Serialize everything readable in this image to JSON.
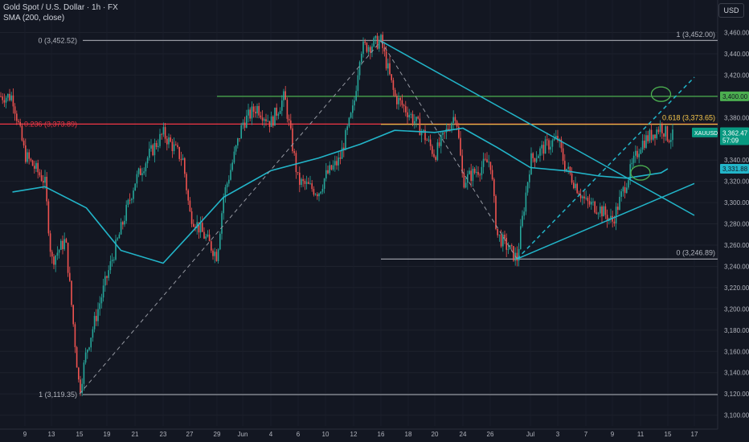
{
  "header": {
    "symbol_line": "Gold Spot / U.S. Dollar · 1h · FX",
    "indicator_line": "SMA (200, close)",
    "currency_button": "USD"
  },
  "colors": {
    "background": "#131722",
    "price_up": "#26a69a",
    "price_down": "#ef5350",
    "sma": "#22b5c9",
    "trendline": "#22b5c9",
    "fib_grey": "#9598a1",
    "fib_red": "#f23645",
    "fib_yellow": "#f7c74a",
    "level_green": "#4caf50",
    "badge_teal": "#089981"
  },
  "chart_data": {
    "type": "candlestick",
    "title": "Gold Spot / U.S. Dollar · 1h · FX",
    "ylabel": "USD",
    "ylim": [
      3095,
      3470
    ],
    "y_ticks": [
      3100,
      3120,
      3140,
      3160,
      3180,
      3200,
      3220,
      3240,
      3260,
      3280,
      3300,
      3320,
      3340,
      3360,
      3380,
      3400,
      3420,
      3440,
      3460
    ],
    "y_tick_labels": [
      "3,100.00",
      "3,120.00",
      "3,140.00",
      "3,160.00",
      "3,180.00",
      "3,200.00",
      "3,220.00",
      "3,240.00",
      "3,260.00",
      "3,280.00",
      "3,300.00",
      "3,320.00",
      "3,340.00",
      "3,360.00",
      "3,380.00",
      "3,400.00",
      "3,420.00",
      "3,440.00",
      "3,460.00"
    ],
    "x_tick_labels": [
      "9",
      "13",
      "15",
      "19",
      "21",
      "23",
      "27",
      "29",
      "Jun",
      "4",
      "6",
      "10",
      "12",
      "16",
      "18",
      "20",
      "24",
      "26",
      "Jul",
      "3",
      "7",
      "9",
      "11",
      "15",
      "17"
    ],
    "price_series": {
      "name": "XAUUSD",
      "last_price": "3,362.47",
      "countdown": "57:09",
      "path_keypoints": [
        {
          "date": "May 8",
          "price": 3400
        },
        {
          "date": "May 9",
          "price": 3345
        },
        {
          "date": "May 12",
          "price": 3320
        },
        {
          "date": "May 13",
          "price": 3245
        },
        {
          "date": "May 14",
          "price": 3265
        },
        {
          "date": "May 15",
          "price": 3122
        },
        {
          "date": "May 16",
          "price": 3160
        },
        {
          "date": "May 19",
          "price": 3230
        },
        {
          "date": "May 20",
          "price": 3275
        },
        {
          "date": "May 21",
          "price": 3320
        },
        {
          "date": "May 22",
          "price": 3345
        },
        {
          "date": "May 23",
          "price": 3365
        },
        {
          "date": "May 26",
          "price": 3340
        },
        {
          "date": "May 27",
          "price": 3290
        },
        {
          "date": "May 29",
          "price": 3250
        },
        {
          "date": "May 30",
          "price": 3305
        },
        {
          "date": "Jun 2",
          "price": 3375
        },
        {
          "date": "Jun 3",
          "price": 3390
        },
        {
          "date": "Jun 4",
          "price": 3375
        },
        {
          "date": "Jun 5",
          "price": 3400
        },
        {
          "date": "Jun 6",
          "price": 3320
        },
        {
          "date": "Jun 9",
          "price": 3310
        },
        {
          "date": "Jun 10",
          "price": 3325
        },
        {
          "date": "Jun 11",
          "price": 3340
        },
        {
          "date": "Jun 12",
          "price": 3390
        },
        {
          "date": "Jun 13",
          "price": 3445
        },
        {
          "date": "Jun 16",
          "price": 3452
        },
        {
          "date": "Jun 17",
          "price": 3400
        },
        {
          "date": "Jun 18",
          "price": 3385
        },
        {
          "date": "Jun 19",
          "price": 3368
        },
        {
          "date": "Jun 20",
          "price": 3345
        },
        {
          "date": "Jun 23",
          "price": 3385
        },
        {
          "date": "Jun 24",
          "price": 3320
        },
        {
          "date": "Jun 25",
          "price": 3330
        },
        {
          "date": "Jun 26",
          "price": 3340
        },
        {
          "date": "Jun 27",
          "price": 3270
        },
        {
          "date": "Jun 30",
          "price": 3247
        },
        {
          "date": "Jul 1",
          "price": 3340
        },
        {
          "date": "Jul 2",
          "price": 3352
        },
        {
          "date": "Jul 3",
          "price": 3360
        },
        {
          "date": "Jul 4",
          "price": 3335
        },
        {
          "date": "Jul 7",
          "price": 3300
        },
        {
          "date": "Jul 8",
          "price": 3295
        },
        {
          "date": "Jul 9",
          "price": 3282
        },
        {
          "date": "Jul 10",
          "price": 3320
        },
        {
          "date": "Jul 11",
          "price": 3355
        },
        {
          "date": "Jul 14",
          "price": 3372
        },
        {
          "date": "Jul 15",
          "price": 3362
        }
      ]
    },
    "sma_series": {
      "name": "SMA (200, close)",
      "last_value": "3,331.88",
      "path_keypoints": [
        {
          "date": "May 8",
          "price": 3310
        },
        {
          "date": "May 12",
          "price": 3315
        },
        {
          "date": "May 16",
          "price": 3295
        },
        {
          "date": "May 20",
          "price": 3255
        },
        {
          "date": "May 23",
          "price": 3243
        },
        {
          "date": "May 27",
          "price": 3270
        },
        {
          "date": "May 30",
          "price": 3305
        },
        {
          "date": "Jun 4",
          "price": 3330
        },
        {
          "date": "Jun 9",
          "price": 3342
        },
        {
          "date": "Jun 13",
          "price": 3355
        },
        {
          "date": "Jun 17",
          "price": 3368
        },
        {
          "date": "Jun 20",
          "price": 3366
        },
        {
          "date": "Jun 24",
          "price": 3370
        },
        {
          "date": "Jun 27",
          "price": 3352
        },
        {
          "date": "Jul 1",
          "price": 3333
        },
        {
          "date": "Jul 4",
          "price": 3330
        },
        {
          "date": "Jul 8",
          "price": 3325
        },
        {
          "date": "Jul 10",
          "price": 3323
        },
        {
          "date": "Jul 14",
          "price": 3328
        },
        {
          "date": "Jul 15",
          "price": 3331.88
        }
      ]
    },
    "fibonacci_drawings": [
      {
        "label": "0 (3,452.52)",
        "price": 3452.52
      },
      {
        "label": "0.236 (3,373.89)",
        "price": 3373.89
      },
      {
        "label": "1 (3,119.35)",
        "price": 3119.35
      },
      {
        "label": "1 (3,452.00)",
        "price": 3452.0
      },
      {
        "label": "0.618 (3,373.65)",
        "price": 3373.65
      },
      {
        "label": "0 (3,246.89)",
        "price": 3246.89
      }
    ],
    "horizontal_levels": [
      {
        "label": "3,400.00",
        "price": 3400.0
      }
    ],
    "trendlines": [
      {
        "from": {
          "date": "Jun 16",
          "price": 3452
        },
        "to": {
          "date": "Jul 17",
          "price": 3288
        },
        "style": "solid"
      },
      {
        "from": {
          "date": "Jun 30",
          "price": 3247
        },
        "to": {
          "date": "Jul 17",
          "price": 3318
        },
        "style": "solid"
      },
      {
        "from": {
          "date": "Jun 30",
          "price": 3247
        },
        "to": {
          "date": "Jul 17",
          "price": 3418
        },
        "style": "dashed"
      },
      {
        "from": {
          "date": "May 15",
          "price": 3120
        },
        "to": {
          "date": "Jun 16",
          "price": 3452
        },
        "style": "dashed"
      },
      {
        "from": {
          "date": "Jun 16",
          "price": 3452
        },
        "to": {
          "date": "Jun 30",
          "price": 3247
        },
        "style": "dashed"
      }
    ],
    "markers": [
      {
        "type": "circle",
        "date": "Jul 14",
        "price": 3402
      },
      {
        "type": "circle",
        "date": "Jul 11",
        "price": 3328
      }
    ]
  }
}
